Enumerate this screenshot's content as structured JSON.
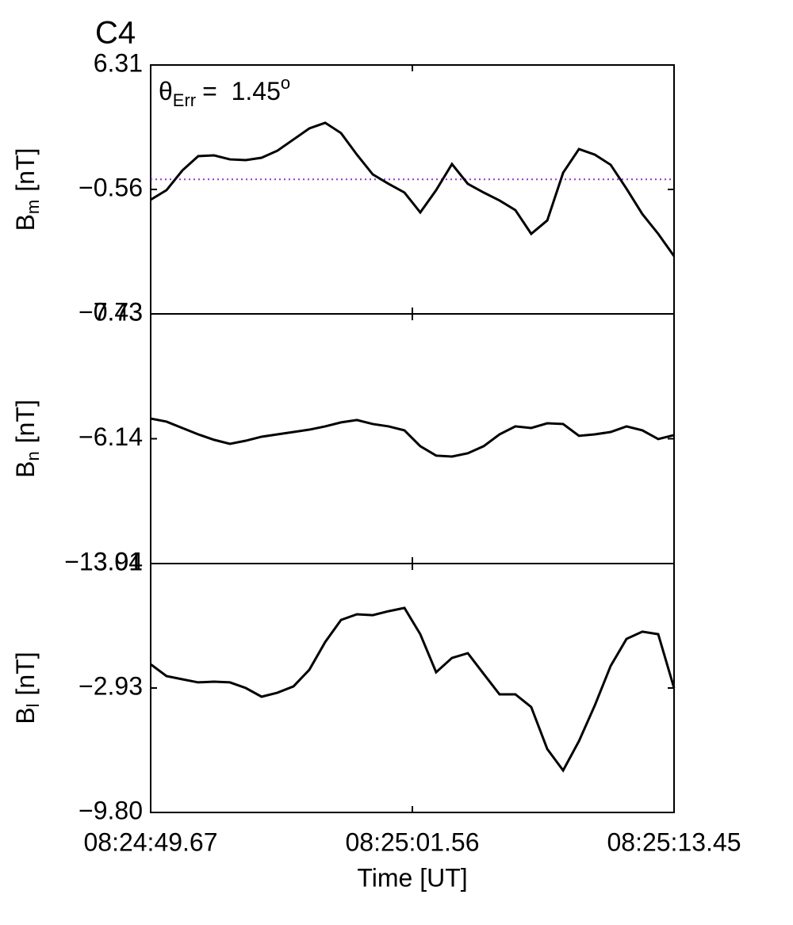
{
  "chart_data": [
    {
      "type": "line",
      "title": "C4",
      "title_color": "#ee0000",
      "annotation": {
        "symbol": "θ",
        "subscript": "Err",
        "text": "=  1.45",
        "superscript": "o"
      },
      "ylabel": {
        "main": "B",
        "sub": "m",
        "unit": "[nT]"
      },
      "ylim": [
        -7.43,
        6.31
      ],
      "yticks": [
        6.31,
        {
          "value": -0.56,
          "label": "−0.56"
        },
        {
          "value": -7.43,
          "label": "−7.43"
        }
      ],
      "xlim": [
        30289.67,
        30313.45
      ],
      "hline": {
        "value": 0,
        "color": "#9933cc"
      },
      "color": "#000000",
      "x": [
        30289.67,
        30290.39,
        30291.11,
        30291.83,
        30292.55,
        30293.27,
        30293.99,
        30294.71,
        30295.43,
        30296.16,
        30296.88,
        30297.6,
        30298.32,
        30299.04,
        30299.76,
        30300.48,
        30301.2,
        30301.92,
        30302.64,
        30303.36,
        30304.08,
        30304.8,
        30305.52,
        30306.24,
        30306.96,
        30307.69,
        30308.41,
        30309.13,
        30309.85,
        30310.57,
        30311.29,
        30312.01,
        30312.73,
        30313.45
      ],
      "values": [
        -1.13,
        -0.6,
        0.49,
        1.28,
        1.32,
        1.1,
        1.06,
        1.19,
        1.58,
        2.2,
        2.81,
        3.12,
        2.55,
        1.36,
        0.27,
        -0.25,
        -0.73,
        -1.83,
        -0.6,
        0.84,
        -0.25,
        -0.73,
        -1.17,
        -1.7,
        -3.01,
        -2.27,
        0.36,
        1.67,
        1.36,
        0.8,
        -0.52,
        -1.92,
        -3.01,
        -4.24
      ]
    },
    {
      "type": "line",
      "ylabel": {
        "main": "B",
        "sub": "n",
        "unit": "[nT]"
      },
      "ylim": [
        -13.01,
        0.73
      ],
      "yticks": [
        0.73,
        {
          "value": -6.14,
          "label": "−6.14"
        },
        {
          "value": -13.01,
          "label": "−13.01"
        }
      ],
      "xlim": [
        30289.67,
        30313.45
      ],
      "color": "#000000",
      "x": [
        30289.67,
        30290.39,
        30291.11,
        30291.83,
        30292.55,
        30293.27,
        30293.99,
        30294.71,
        30295.43,
        30296.16,
        30296.88,
        30297.6,
        30298.32,
        30299.04,
        30299.76,
        30300.48,
        30301.2,
        30301.92,
        30302.64,
        30303.36,
        30304.08,
        30304.8,
        30305.52,
        30306.24,
        30306.96,
        30307.69,
        30308.41,
        30309.13,
        30309.85,
        30310.57,
        30311.29,
        30312.01,
        30312.73,
        30313.45
      ],
      "values": [
        -5.03,
        -5.2,
        -5.55,
        -5.9,
        -6.2,
        -6.42,
        -6.25,
        -6.03,
        -5.9,
        -5.77,
        -5.64,
        -5.46,
        -5.24,
        -5.11,
        -5.33,
        -5.46,
        -5.68,
        -6.55,
        -7.07,
        -7.12,
        -6.94,
        -6.55,
        -5.9,
        -5.46,
        -5.55,
        -5.29,
        -5.33,
        -5.98,
        -5.9,
        -5.77,
        -5.46,
        -5.68,
        -6.16,
        -5.94
      ]
    },
    {
      "type": "line",
      "ylabel": {
        "main": "B",
        "sub": "l",
        "unit": "[nT]"
      },
      "ylim": [
        -9.8,
        3.94
      ],
      "yticks": [
        3.94,
        {
          "value": -2.93,
          "label": "−2.93"
        },
        {
          "value": -9.8,
          "label": "−9.80"
        }
      ],
      "xlim": [
        30289.67,
        30313.45
      ],
      "xticks": [
        {
          "value": 30289.67,
          "label": "08:24:49.67"
        },
        {
          "value": 30301.56,
          "label": "08:25:01.56"
        },
        {
          "value": 30313.45,
          "label": "08:25:13.45"
        }
      ],
      "xlabel": "Time [UT]",
      "color": "#000000",
      "x": [
        30289.67,
        30290.39,
        30291.11,
        30291.83,
        30292.55,
        30293.27,
        30293.99,
        30294.71,
        30295.43,
        30296.16,
        30296.88,
        30297.6,
        30298.32,
        30299.04,
        30299.76,
        30300.48,
        30301.2,
        30301.92,
        30302.64,
        30303.36,
        30304.08,
        30304.8,
        30305.52,
        30306.24,
        30306.96,
        30307.69,
        30308.41,
        30309.13,
        30309.85,
        30310.57,
        30311.29,
        30312.01,
        30312.73,
        30313.45
      ],
      "values": [
        -1.62,
        -2.27,
        -2.45,
        -2.62,
        -2.58,
        -2.62,
        -2.93,
        -3.41,
        -3.19,
        -2.84,
        -1.92,
        -0.39,
        0.83,
        1.14,
        1.09,
        1.31,
        1.49,
        0.04,
        -2.06,
        -1.27,
        -1.01,
        -2.15,
        -3.28,
        -3.28,
        -3.98,
        -6.3,
        -7.48,
        -5.86,
        -3.89,
        -1.71,
        -0.22,
        0.18,
        0.04,
        -2.93
      ]
    }
  ]
}
